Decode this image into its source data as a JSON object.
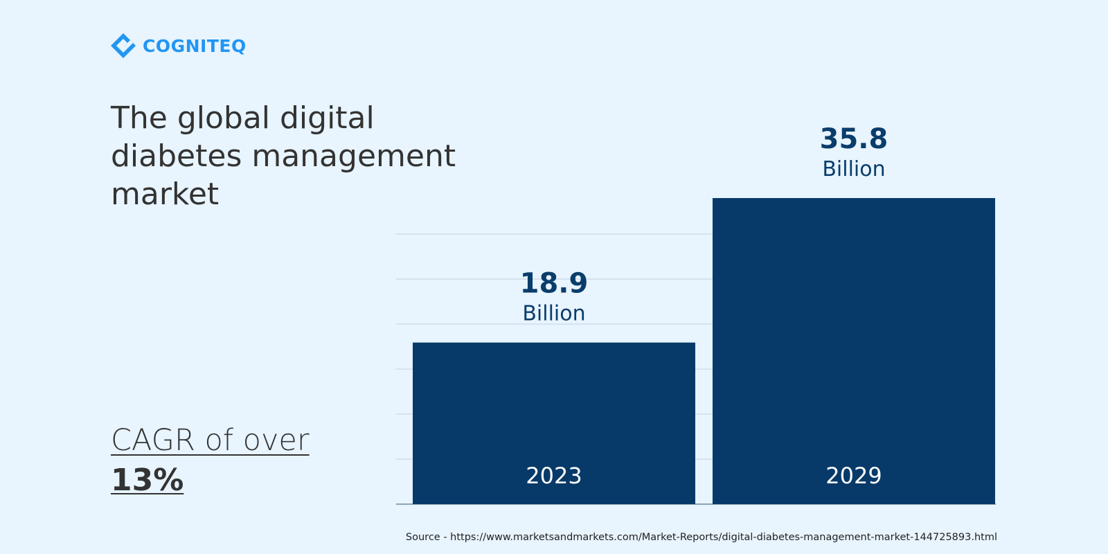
{
  "brand": {
    "name": "COGNITEQ",
    "logo_icon": "cogniteq-diamond-logo-icon",
    "color": "#2196f3"
  },
  "headline": "The global digital diabetes management market",
  "cagr": {
    "text": "CAGR of over",
    "value": "13%"
  },
  "source": "Source - https://www.marketsandmarkets.com/Market-Reports/digital-diabetes-management-market-144725893.html",
  "colors": {
    "bar": "#083a69",
    "label": "#0a3d6b",
    "text": "#333333",
    "grid": "#d0dde9",
    "background": "#e8f4fe"
  },
  "chart_data": {
    "type": "bar",
    "categories": [
      "2023",
      "2029"
    ],
    "values": [
      18.9,
      35.8
    ],
    "value_labels": [
      "18.9",
      "35.8"
    ],
    "unit_label": "Billion",
    "ylim": [
      0,
      40
    ],
    "grid": true,
    "legend": "none"
  }
}
